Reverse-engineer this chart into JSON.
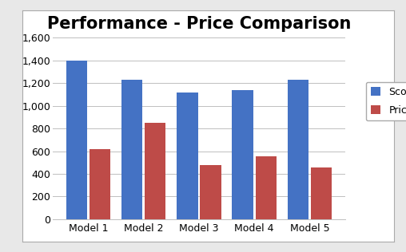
{
  "title": "Performance - Price Comparison",
  "categories": [
    "Model 1",
    "Model 2",
    "Model 3",
    "Model 4",
    "Model 5"
  ],
  "series": [
    {
      "name": "Score",
      "values": [
        1400,
        1230,
        1120,
        1140,
        1230
      ],
      "color": "#4472C4"
    },
    {
      "name": "Price",
      "values": [
        615,
        850,
        475,
        555,
        455
      ],
      "color": "#BE4B48"
    }
  ],
  "ylim": [
    0,
    1600
  ],
  "yticks": [
    0,
    200,
    400,
    600,
    800,
    1000,
    1200,
    1400,
    1600
  ],
  "outer_bg_color": "#E8E8E8",
  "inner_bg_color": "#FFFFFF",
  "plot_bg_color": "#FFFFFF",
  "grid_color": "#BEBEBE",
  "title_fontsize": 15,
  "tick_fontsize": 9,
  "legend_fontsize": 9,
  "bar_width": 0.38,
  "bar_gap": 0.04
}
